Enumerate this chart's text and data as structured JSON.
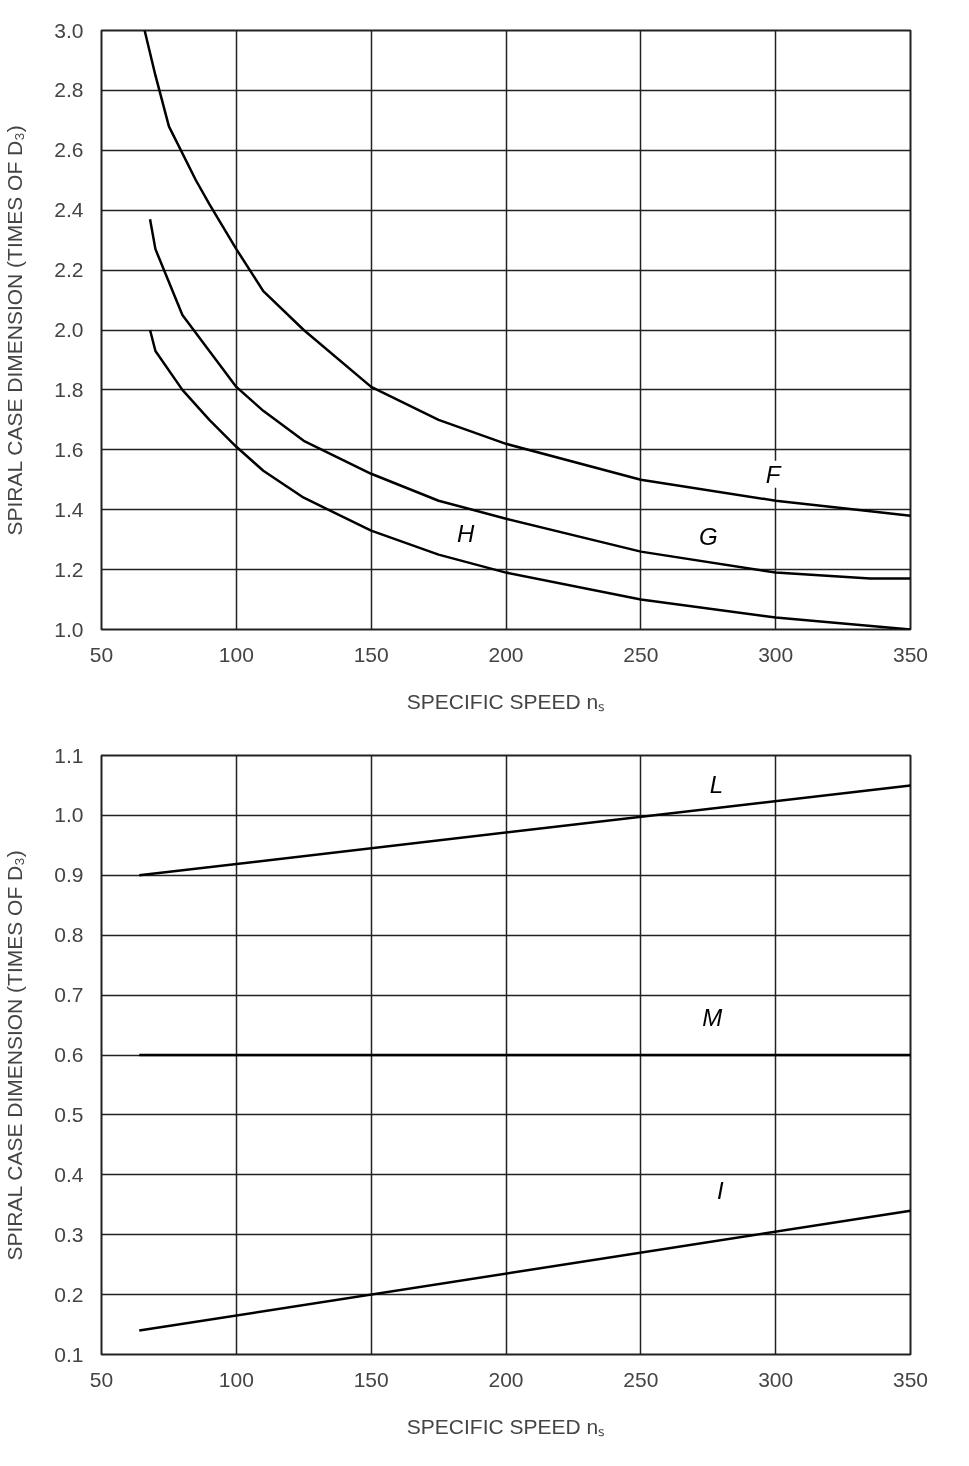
{
  "chart_data": [
    {
      "type": "line",
      "xlabel": "SPECIFIC SPEED nₛ",
      "ylabel": "SPIRAL CASE DIMENSION (TIMES OF D₃)",
      "xlim": [
        50,
        350
      ],
      "ylim": [
        1.0,
        3.0
      ],
      "xticks": [
        50,
        100,
        150,
        200,
        250,
        300,
        350
      ],
      "yticks": [
        {
          "value": 1.0,
          "label": "1.0"
        },
        1.2,
        1.4,
        1.6,
        1.8,
        {
          "value": 2.0,
          "label": "2.0"
        },
        2.2,
        2.4,
        2.6,
        2.8,
        {
          "value": 3.0,
          "label": "3.0"
        }
      ],
      "grid": true,
      "legend": false,
      "series": [
        {
          "name": "F",
          "color": "#000000",
          "x": [
            66,
            70,
            75,
            85,
            90,
            100,
            110,
            125,
            150,
            175,
            200,
            250,
            300,
            350
          ],
          "values": [
            3.0,
            2.85,
            2.68,
            2.5,
            2.42,
            2.27,
            2.13,
            2.0,
            1.81,
            1.7,
            1.62,
            1.5,
            1.43,
            1.38
          ]
        },
        {
          "name": "G",
          "color": "#000000",
          "x": [
            68,
            70,
            80,
            90,
            100,
            110,
            125,
            150,
            175,
            200,
            250,
            300,
            335,
            350
          ],
          "values": [
            2.37,
            2.27,
            2.05,
            1.93,
            1.81,
            1.73,
            1.63,
            1.52,
            1.43,
            1.37,
            1.26,
            1.19,
            1.17,
            1.17
          ]
        },
        {
          "name": "H",
          "color": "#000000",
          "x": [
            68,
            70,
            80,
            90,
            100,
            110,
            125,
            150,
            175,
            200,
            250,
            300,
            350
          ],
          "values": [
            2.0,
            1.93,
            1.8,
            1.7,
            1.61,
            1.53,
            1.44,
            1.33,
            1.25,
            1.19,
            1.1,
            1.04,
            1.0
          ]
        }
      ]
    },
    {
      "type": "line",
      "xlabel": "SPECIFIC SPEED nₛ",
      "ylabel": "SPIRAL CASE DIMENSION (TIMES OF D₃)",
      "xlim": [
        50,
        350
      ],
      "ylim": [
        0.1,
        1.1
      ],
      "xticks": [
        50,
        100,
        150,
        200,
        250,
        300,
        350
      ],
      "yticks": [
        0.1,
        0.2,
        0.3,
        0.4,
        0.5,
        0.6,
        0.7,
        0.8,
        0.9,
        {
          "value": 1.0,
          "label": "1.0"
        },
        1.1
      ],
      "grid": true,
      "legend": false,
      "series": [
        {
          "name": "L",
          "color": "#000000",
          "x": [
            64,
            350
          ],
          "values": [
            0.9,
            1.05
          ]
        },
        {
          "name": "M",
          "color": "#000000",
          "x": [
            64,
            350
          ],
          "values": [
            0.6,
            0.6
          ]
        },
        {
          "name": "I",
          "color": "#000000",
          "x": [
            64,
            350
          ],
          "values": [
            0.14,
            0.34
          ]
        }
      ]
    }
  ]
}
